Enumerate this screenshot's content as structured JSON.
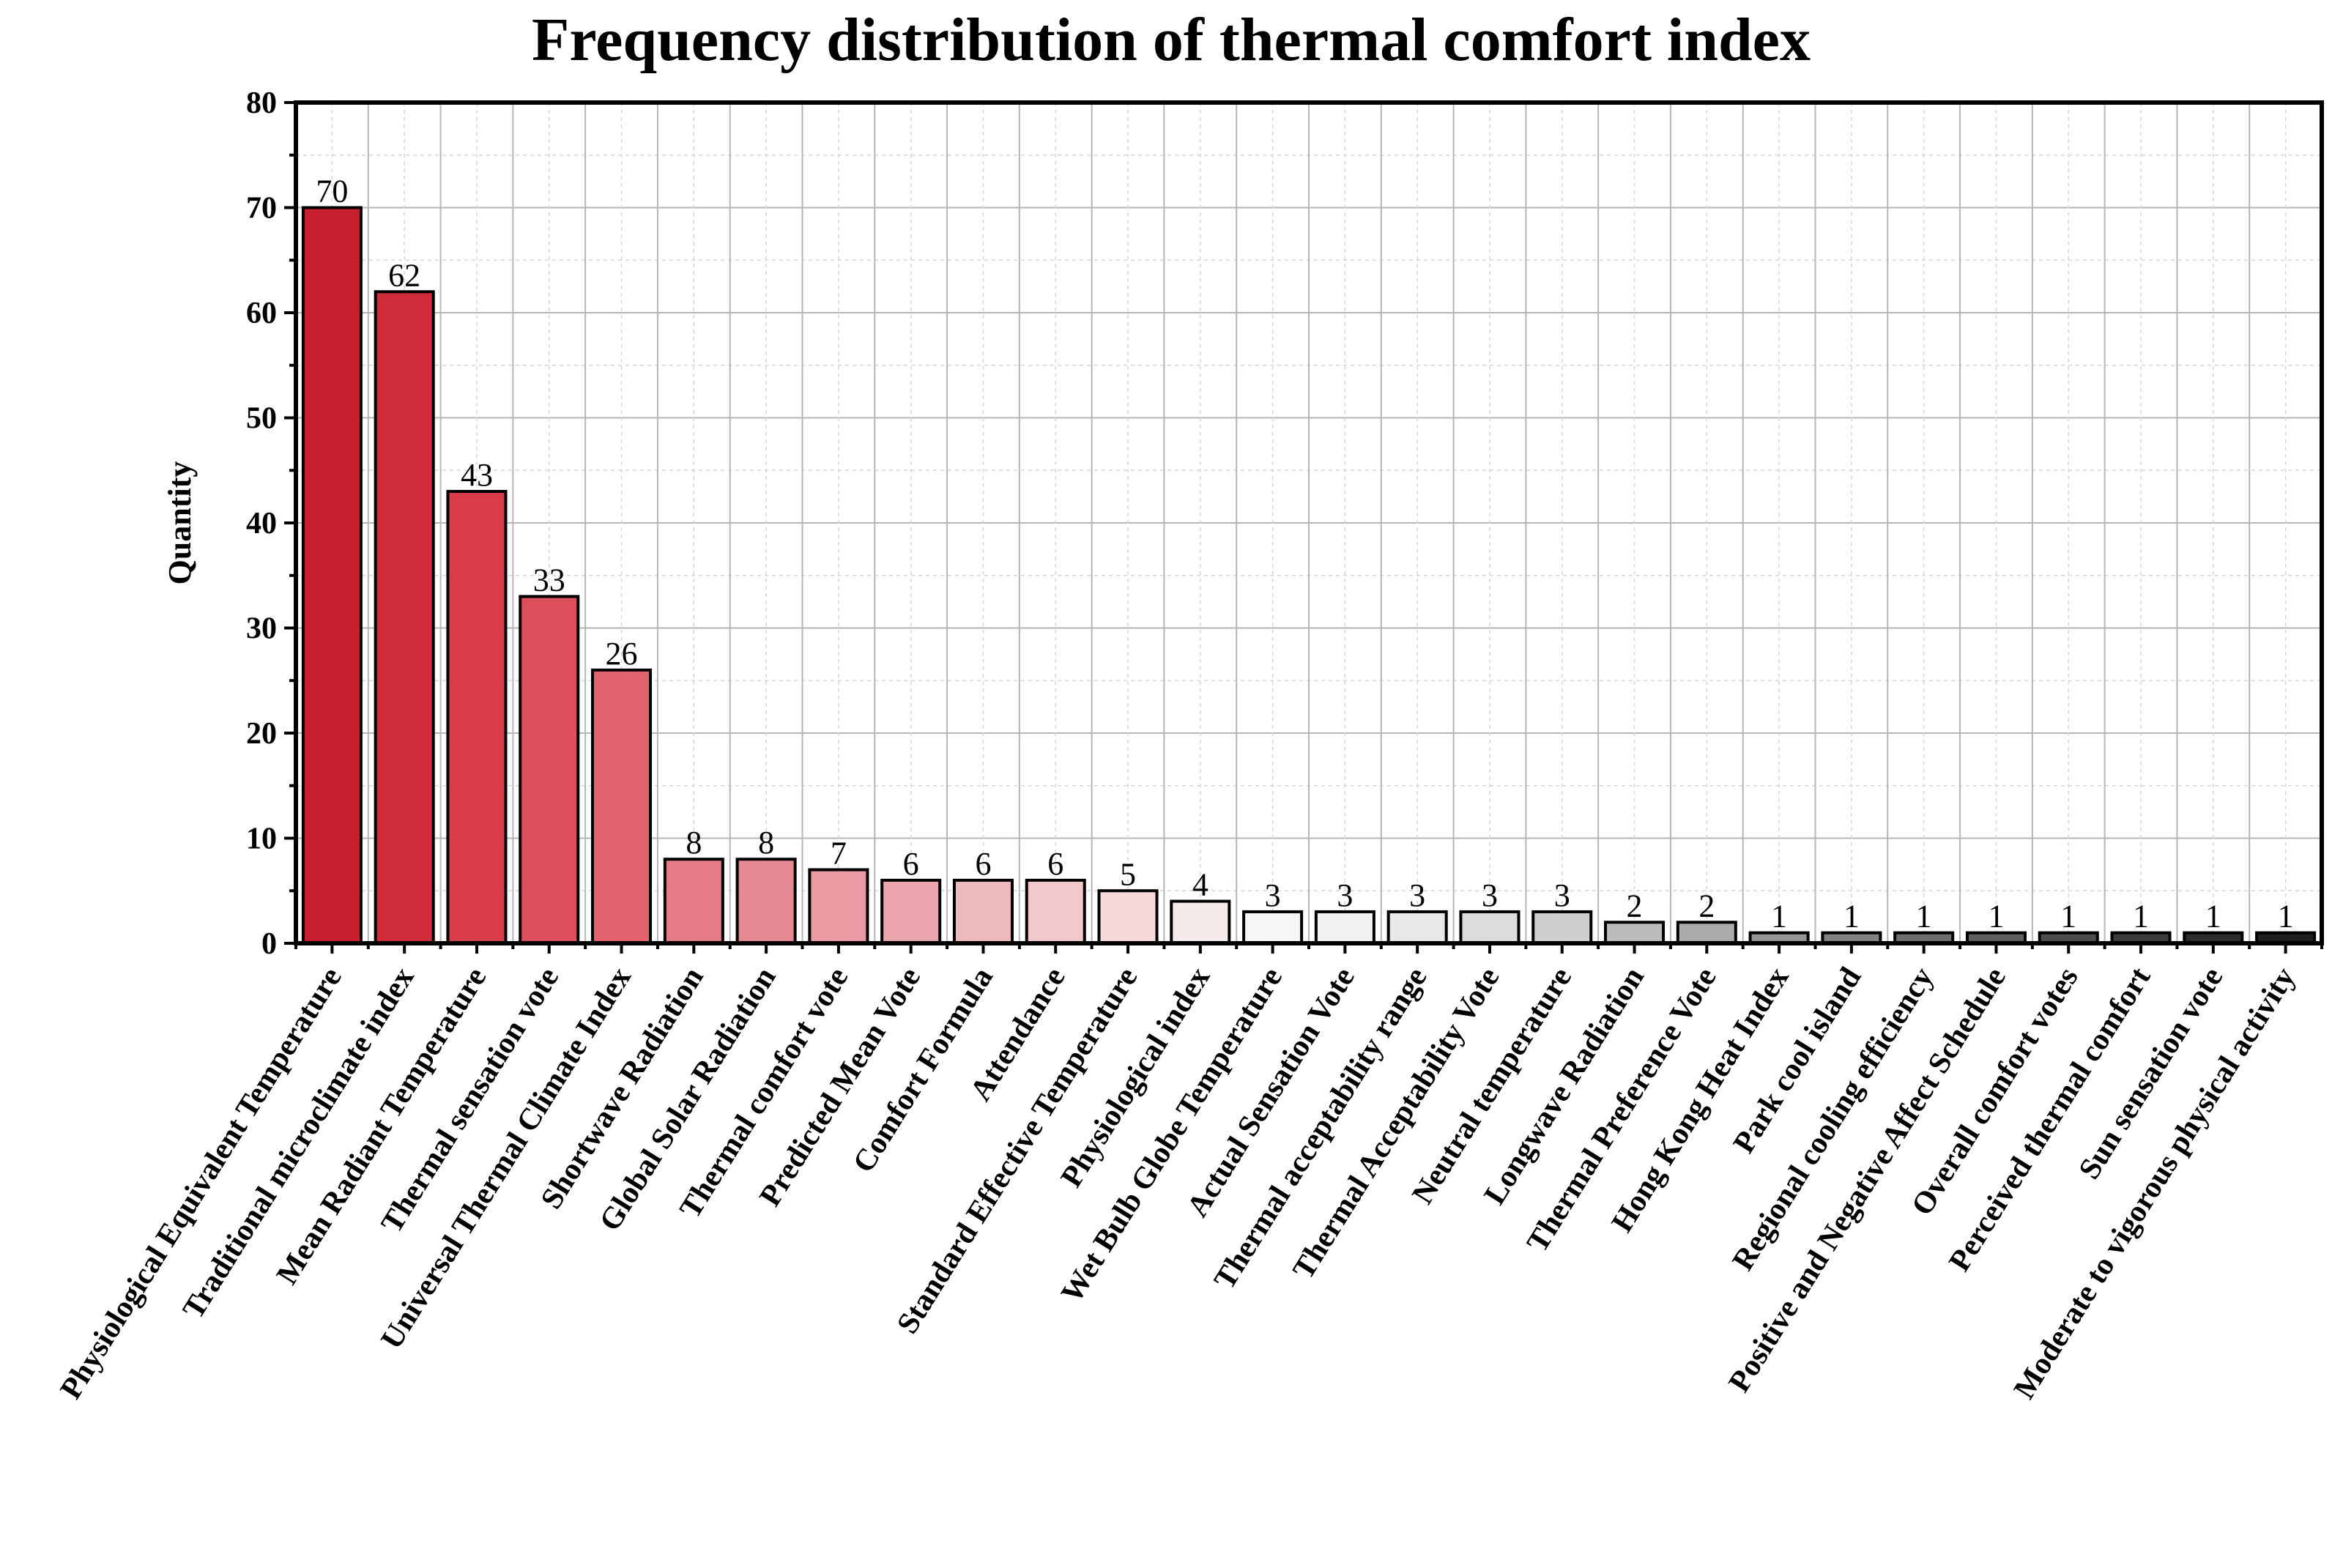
{
  "chart_data": {
    "type": "bar",
    "title": "Frequency distribution of thermal comfort index",
    "xlabel": "",
    "ylabel": "Quantity",
    "ylim": [
      0,
      80
    ],
    "yticks": [
      0,
      10,
      20,
      30,
      40,
      50,
      60,
      70,
      80
    ],
    "grid": true,
    "categories": [
      "Physiological Equivalent Temperature",
      "Traditional microclimate index",
      "Mean Radiant Temperature",
      "Thermal sensation vote",
      "Universal Thermal Climate Index",
      "Shortwave Radiation",
      "Global Solar Radiation",
      "Thermal comfort vote",
      "Predicted Mean Vote",
      "Comfort Formula",
      "Attendance",
      "Standard Effective Temperature",
      "Physiological index",
      "Wet Bulb Globe Temperature",
      "Actual Sensation Vote",
      "Thermal acceptability range",
      "Thermal Acceptability Vote",
      "Neutral temperature",
      "Longwave Radiation",
      "Thermal Preference Vote",
      "Hong Kong Heat Index",
      "Park cool island",
      "Regional cooling efficiency",
      "Positive and Negative Affect Schedule",
      "Overall comfort votes",
      "Perceived thermal comfort",
      "Sun sensation vote",
      "Moderate to vigorous physical activity"
    ],
    "values": [
      70,
      62,
      43,
      33,
      26,
      8,
      8,
      7,
      6,
      6,
      6,
      5,
      4,
      3,
      3,
      3,
      3,
      3,
      2,
      2,
      1,
      1,
      1,
      1,
      1,
      1,
      1,
      1
    ],
    "colors": [
      "#c8202e",
      "#d02c39",
      "#d93d4a",
      "#dc4f5b",
      "#e1636e",
      "#e57b85",
      "#e58a93",
      "#e99aa2",
      "#eba6ad",
      "#eeb9bd",
      "#f2c8cb",
      "#f5d9db",
      "#f7eaeb",
      "#f6f6f6",
      "#f1f1f1",
      "#e8e8e8",
      "#dcdcdc",
      "#cfcfcf",
      "#bcbcbc",
      "#ababab",
      "#959595",
      "#828282",
      "#6f6f6f",
      "#5e5e5e",
      "#4d4d4d",
      "#3c3c3c",
      "#2d2d2d",
      "#1f1f1f"
    ]
  }
}
